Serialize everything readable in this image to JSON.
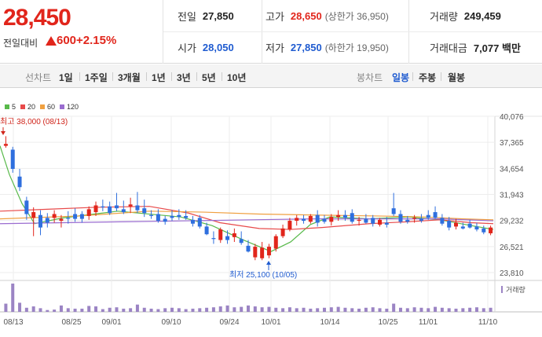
{
  "quote": {
    "price": "28,450",
    "change_label": "전일대비",
    "change_value": "600",
    "change_rate": "+2.15%",
    "prev_close_label": "전일",
    "prev_close": "27,850",
    "high_label": "고가",
    "high": "28,650",
    "upper_limit": "(상한가 36,950)",
    "volume_label": "거래량",
    "volume": "249,459",
    "open_label": "시가",
    "open": "28,050",
    "low_label": "저가",
    "low": "27,850",
    "lower_limit": "(하한가 19,950)",
    "amount_label": "거래대금",
    "amount": "7,077 백만"
  },
  "toolbar": {
    "line_chart_label": "선차트",
    "periods": [
      "1일",
      "1주일",
      "3개월",
      "1년",
      "3년",
      "5년",
      "10년"
    ],
    "candle_label": "봉차트",
    "candle_periods": [
      "일봉",
      "주봉",
      "월봉"
    ],
    "active_candle": "일봉"
  },
  "legend": [
    {
      "label": "5",
      "color": "#58b94a"
    },
    {
      "label": "20",
      "color": "#e84a4a"
    },
    {
      "label": "60",
      "color": "#f0a040"
    },
    {
      "label": "120",
      "color": "#9a6cd0"
    }
  ],
  "chart_data": {
    "type": "candlestick",
    "y_ticks": [
      "40,076",
      "37,365",
      "34,654",
      "31,943",
      "29,232",
      "26,521",
      "23,810"
    ],
    "ylim": [
      23810,
      40076
    ],
    "x_ticks": [
      "08/13",
      "08/25",
      "09/01",
      "09/10",
      "09/24",
      "10/01",
      "10/14",
      "10/25",
      "11/01",
      "11/10"
    ],
    "max_label": "최고 38,000 (08/13)",
    "min_label": "최저 25,100 (10/05)",
    "volume_label": "거래량",
    "colors": {
      "up": "#e1251b",
      "down": "#2f6fde",
      "volume": "#9b84c4"
    },
    "candles": [
      [
        37000,
        38000,
        36800,
        37200
      ],
      [
        36600,
        36900,
        34200,
        34600
      ],
      [
        33800,
        34600,
        32300,
        32700
      ],
      [
        31300,
        31700,
        29300,
        29900
      ],
      [
        29500,
        30600,
        27600,
        30100
      ],
      [
        29800,
        30300,
        27700,
        28500
      ],
      [
        29500,
        30000,
        28500,
        29000
      ],
      [
        29500,
        30300,
        29000,
        29900
      ],
      [
        29200,
        29800,
        28500,
        29400
      ],
      [
        29500,
        30200,
        28900,
        29400
      ],
      [
        29900,
        30500,
        29100,
        29400
      ],
      [
        29900,
        30200,
        29000,
        29400
      ],
      [
        29700,
        30700,
        29300,
        30400
      ],
      [
        30100,
        31200,
        29700,
        30800
      ],
      [
        30700,
        31400,
        30200,
        30600
      ],
      [
        30700,
        31200,
        29800,
        30000
      ],
      [
        30800,
        32100,
        30200,
        30500
      ],
      [
        30400,
        31300,
        29900,
        30100
      ],
      [
        30700,
        31600,
        30000,
        30900
      ],
      [
        30800,
        32200,
        30000,
        30300
      ],
      [
        30500,
        31400,
        29600,
        30000
      ],
      [
        29800,
        30300,
        29400,
        29700
      ],
      [
        29900,
        30400,
        29000,
        29200
      ],
      [
        29400,
        29700,
        28800,
        29100
      ],
      [
        29700,
        30300,
        29200,
        29500
      ],
      [
        29800,
        30400,
        29300,
        29600
      ],
      [
        29700,
        30300,
        29300,
        29500
      ],
      [
        29300,
        29700,
        28600,
        28900
      ],
      [
        29500,
        29800,
        28400,
        28600
      ],
      [
        28600,
        29000,
        27700,
        27800
      ],
      [
        27400,
        28100,
        26800,
        27300
      ],
      [
        27200,
        28500,
        26900,
        28300
      ],
      [
        27600,
        28200,
        26800,
        27200
      ],
      [
        27500,
        28400,
        27000,
        27900
      ],
      [
        27300,
        28100,
        26700,
        26900
      ],
      [
        26600,
        27200,
        25900,
        26000
      ],
      [
        25400,
        26800,
        25100,
        26500
      ],
      [
        25300,
        27000,
        25100,
        26400
      ],
      [
        25600,
        26800,
        25300,
        26500
      ],
      [
        26300,
        27800,
        26000,
        27600
      ],
      [
        27600,
        28800,
        27400,
        28400
      ],
      [
        28300,
        29500,
        28100,
        29200
      ],
      [
        29200,
        29800,
        28700,
        29500
      ],
      [
        29400,
        29800,
        28900,
        29200
      ],
      [
        29100,
        29900,
        28900,
        29700
      ],
      [
        29800,
        30300,
        28600,
        29000
      ],
      [
        29400,
        29800,
        28900,
        29100
      ],
      [
        29100,
        29900,
        28700,
        29600
      ],
      [
        29600,
        30300,
        29200,
        29800
      ],
      [
        29800,
        30300,
        29200,
        29500
      ],
      [
        30000,
        30400,
        28900,
        29100
      ],
      [
        29200,
        29600,
        28700,
        29300
      ],
      [
        29400,
        29900,
        28900,
        29000
      ],
      [
        29500,
        29800,
        28600,
        28900
      ],
      [
        28800,
        29500,
        28600,
        29300
      ],
      [
        29000,
        29600,
        28500,
        28800
      ],
      [
        30500,
        32100,
        29700,
        29900
      ],
      [
        29900,
        30300,
        28900,
        29100
      ],
      [
        29300,
        29700,
        28900,
        29100
      ],
      [
        29400,
        29800,
        29000,
        29500
      ],
      [
        29400,
        29900,
        29000,
        29200
      ],
      [
        29800,
        30300,
        29300,
        29500
      ],
      [
        30100,
        30700,
        29400,
        29500
      ],
      [
        29500,
        29900,
        28700,
        28900
      ],
      [
        29200,
        29600,
        28200,
        28500
      ],
      [
        28600,
        29400,
        28300,
        29000
      ],
      [
        28600,
        29000,
        28300,
        28400
      ],
      [
        28900,
        29300,
        28400,
        28500
      ],
      [
        28600,
        29000,
        28100,
        28300
      ],
      [
        28400,
        28700,
        27800,
        28000
      ],
      [
        27900,
        28700,
        27700,
        28500
      ]
    ],
    "volumes": [
      18,
      62,
      20,
      9,
      12,
      8,
      4,
      5,
      14,
      8,
      7,
      7,
      13,
      12,
      6,
      9,
      10,
      7,
      8,
      16,
      9,
      7,
      6,
      8,
      9,
      8,
      6,
      7,
      8,
      9,
      10,
      12,
      14,
      10,
      11,
      14,
      12,
      10,
      11,
      9,
      8,
      10,
      8,
      9,
      7,
      8,
      9,
      10,
      11,
      9,
      8,
      7,
      9,
      10,
      8,
      7,
      18,
      9,
      8,
      10,
      9,
      8,
      11,
      9,
      8,
      7,
      8,
      9,
      10,
      8,
      9
    ],
    "ma": {
      "5": [
        [
          0,
          37000
        ],
        [
          12,
          34000
        ],
        [
          28,
          31000
        ],
        [
          44,
          28900
        ],
        [
          80,
          29500
        ],
        [
          150,
          30200
        ],
        [
          230,
          29600
        ],
        [
          270,
          28700
        ],
        [
          310,
          27200
        ],
        [
          345,
          26000
        ],
        [
          370,
          27000
        ],
        [
          395,
          28800
        ],
        [
          420,
          29600
        ],
        [
          470,
          29400
        ],
        [
          520,
          29600
        ],
        [
          560,
          29300
        ],
        [
          600,
          28700
        ],
        [
          628,
          28300
        ]
      ],
      "20": [
        [
          0,
          30200
        ],
        [
          60,
          30400
        ],
        [
          120,
          30600
        ],
        [
          190,
          30700
        ],
        [
          240,
          30000
        ],
        [
          280,
          29000
        ],
        [
          330,
          28400
        ],
        [
          370,
          28300
        ],
        [
          410,
          28500
        ],
        [
          470,
          28900
        ],
        [
          520,
          29100
        ],
        [
          560,
          29300
        ],
        [
          600,
          29000
        ],
        [
          628,
          28900
        ]
      ],
      "60": [
        [
          0,
          29400
        ],
        [
          100,
          29700
        ],
        [
          190,
          30200
        ],
        [
          260,
          30100
        ],
        [
          330,
          29900
        ],
        [
          400,
          29800
        ],
        [
          480,
          29700
        ],
        [
          540,
          29600
        ],
        [
          590,
          29400
        ],
        [
          628,
          29300
        ]
      ],
      "120": [
        [
          0,
          28900
        ],
        [
          80,
          29000
        ],
        [
          160,
          29100
        ],
        [
          240,
          29200
        ],
        [
          320,
          29300
        ],
        [
          400,
          29400
        ],
        [
          480,
          29400
        ],
        [
          560,
          29400
        ],
        [
          628,
          29200
        ]
      ]
    }
  }
}
